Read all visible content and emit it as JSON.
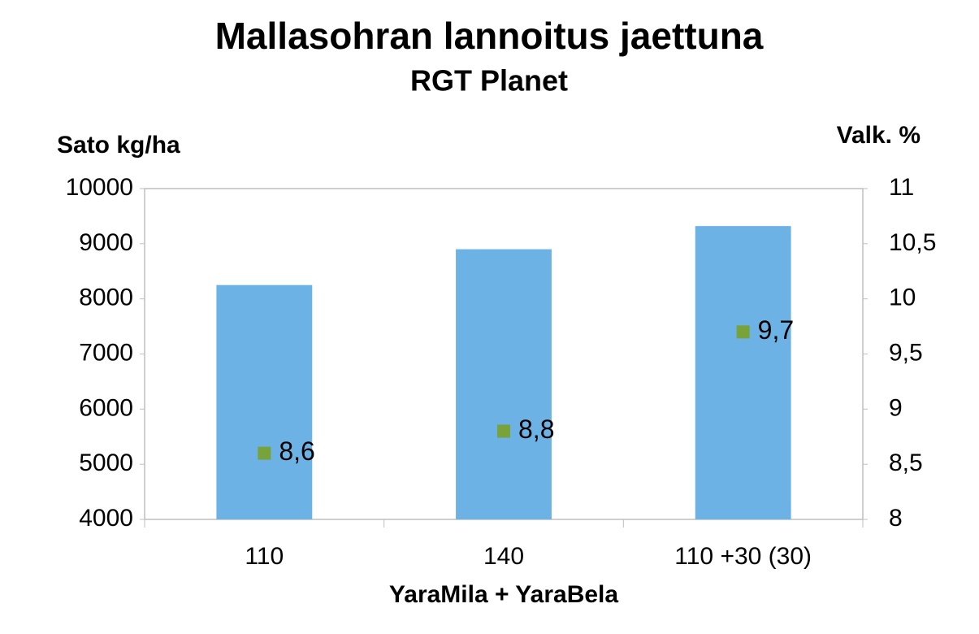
{
  "chart_data": {
    "type": "bar",
    "title": "Mallasohran lannoitus jaettuna",
    "subtitle": "RGT Planet",
    "y_label": "Sato kg/ha",
    "y2_label": "Valk. %",
    "x_label": "YaraMila + YaraBela",
    "categories": [
      "110",
      "140",
      "110 +30 (30)"
    ],
    "series": [
      {
        "type": "bar",
        "color": "#6cb2e4",
        "values": [
          8250,
          8900,
          9320
        ]
      },
      {
        "type": "scatter",
        "axis": "y2",
        "color": "#77a33a",
        "values": [
          8.6,
          8.8,
          9.7
        ],
        "value_labels": [
          "8,6",
          "8,8",
          "9,7"
        ]
      }
    ],
    "ylim": [
      4000,
      10000
    ],
    "yticks": [
      4000,
      5000,
      6000,
      7000,
      8000,
      9000,
      10000
    ],
    "y2lim": [
      8,
      11
    ],
    "y2ticks": [
      8,
      {
        "value": 8.5,
        "label": "8,5"
      },
      9,
      {
        "value": 9.5,
        "label": "9,5"
      },
      10,
      {
        "value": 10.5,
        "label": "10,5"
      },
      11
    ],
    "grid": false
  }
}
